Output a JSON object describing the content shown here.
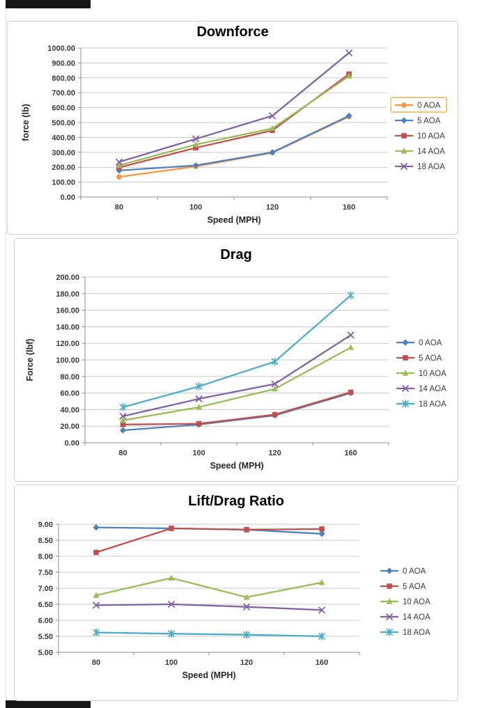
{
  "chart_data": [
    {
      "type": "line",
      "title": "Downforce",
      "xlabel": "Speed (MPH)",
      "ylabel": "force (lb)",
      "categories": [
        "80",
        "100",
        "120",
        "160"
      ],
      "ylim": [
        0,
        1000
      ],
      "ytick_step": 100,
      "tick_decimals": 2,
      "grid": true,
      "legend_position": "right",
      "series": [
        {
          "name": "0 AOA",
          "color": "#F79646",
          "marker": "circle",
          "values": [
            135,
            205,
            297,
            540
          ],
          "legend_selected": true
        },
        {
          "name": "5 AOA",
          "color": "#4F81BD",
          "marker": "diamond",
          "values": [
            178,
            212,
            300,
            545
          ]
        },
        {
          "name": "10 AOA",
          "color": "#C0504D",
          "marker": "square",
          "values": [
            198,
            330,
            447,
            825
          ]
        },
        {
          "name": "14 AOA",
          "color": "#9BBB59",
          "marker": "triangle",
          "values": [
            212,
            352,
            460,
            812
          ]
        },
        {
          "name": "18 AOA",
          "color": "#8064A2",
          "marker": "x",
          "values": [
            235,
            390,
            545,
            968
          ]
        }
      ]
    },
    {
      "type": "line",
      "title": "Drag",
      "xlabel": "Speed (MPH)",
      "ylabel": "Force (lbf)",
      "categories": [
        "80",
        "100",
        "120",
        "160"
      ],
      "ylim": [
        0,
        200
      ],
      "ytick_step": 20,
      "tick_decimals": 2,
      "grid": true,
      "legend_position": "right",
      "series": [
        {
          "name": "0 AOA",
          "color": "#4F81BD",
          "marker": "diamond",
          "values": [
            15,
            22,
            33,
            60
          ]
        },
        {
          "name": "5 AOA",
          "color": "#C0504D",
          "marker": "square",
          "values": [
            22,
            23,
            34,
            61
          ]
        },
        {
          "name": "10 AOA",
          "color": "#9BBB59",
          "marker": "triangle",
          "values": [
            27,
            43,
            65,
            115
          ]
        },
        {
          "name": "14 AOA",
          "color": "#8064A2",
          "marker": "x",
          "values": [
            32,
            53,
            71,
            130
          ]
        },
        {
          "name": "18 AOA",
          "color": "#4BACC6",
          "marker": "asterisk",
          "values": [
            43,
            68,
            98,
            178
          ]
        }
      ]
    },
    {
      "type": "line",
      "title": "Lift/Drag Ratio",
      "xlabel": "Speed (MPH)",
      "ylabel": "",
      "categories": [
        "80",
        "100",
        "120",
        "160"
      ],
      "ylim": [
        5,
        9
      ],
      "ytick_step": 0.5,
      "tick_decimals": 2,
      "grid": true,
      "legend_position": "right",
      "series": [
        {
          "name": "0 AOA",
          "color": "#4F81BD",
          "marker": "diamond",
          "values": [
            8.9,
            8.87,
            8.83,
            8.7
          ]
        },
        {
          "name": "5 AOA",
          "color": "#C0504D",
          "marker": "square",
          "values": [
            8.12,
            8.87,
            8.83,
            8.85
          ]
        },
        {
          "name": "10 AOA",
          "color": "#9BBB59",
          "marker": "triangle",
          "values": [
            6.78,
            7.32,
            6.72,
            7.18
          ]
        },
        {
          "name": "14 AOA",
          "color": "#8064A2",
          "marker": "x",
          "values": [
            6.47,
            6.5,
            6.42,
            6.32
          ]
        },
        {
          "name": "18 AOA",
          "color": "#4BACC6",
          "marker": "asterisk",
          "values": [
            5.62,
            5.58,
            5.55,
            5.5
          ]
        }
      ]
    }
  ]
}
